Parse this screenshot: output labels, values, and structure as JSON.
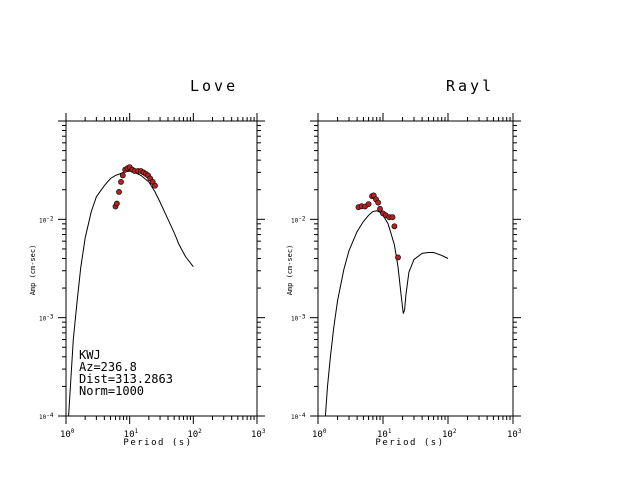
{
  "chart_data": [
    {
      "type": "scatter",
      "title": "Love",
      "xlabel": "Period (s)",
      "ylabel": "Amp (cm-sec)",
      "x_scale": "log",
      "y_scale": "log",
      "xlim": [
        1,
        1000
      ],
      "ylim": [
        0.0001,
        0.1
      ],
      "x_ticks": [
        {
          "base": "10",
          "exp": "0"
        },
        {
          "base": "10",
          "exp": "1"
        },
        {
          "base": "10",
          "exp": "2"
        },
        {
          "base": "10",
          "exp": "3"
        }
      ],
      "y_ticks": [
        {
          "base": "10",
          "exp": "-4"
        },
        {
          "base": "10",
          "exp": "-3"
        },
        {
          "base": "10",
          "exp": "-2"
        }
      ],
      "annotation": [
        "KWJ",
        "Az=236.8",
        "Dist=313.2863",
        "Norm=1000"
      ],
      "series": [
        {
          "kind": "line",
          "color": "#000000",
          "points": [
            [
              1.1,
              0.0001
            ],
            [
              1.2,
              0.00025
            ],
            [
              1.3,
              0.0006
            ],
            [
              1.5,
              0.0015
            ],
            [
              1.7,
              0.0032
            ],
            [
              2.0,
              0.0065
            ],
            [
              2.5,
              0.012
            ],
            [
              3,
              0.017
            ],
            [
              4,
              0.022
            ],
            [
              5,
              0.026
            ],
            [
              6,
              0.028
            ],
            [
              7,
              0.029
            ],
            [
              8,
              0.03
            ],
            [
              10,
              0.031
            ],
            [
              12,
              0.03
            ],
            [
              15,
              0.028
            ],
            [
              20,
              0.024
            ],
            [
              25,
              0.019
            ],
            [
              30,
              0.015
            ],
            [
              40,
              0.01
            ],
            [
              50,
              0.0073
            ],
            [
              60,
              0.0055
            ],
            [
              75,
              0.0042
            ],
            [
              100,
              0.0033
            ]
          ]
        },
        {
          "kind": "points",
          "color": "#b22222",
          "points": [
            [
              6.0,
              0.0135
            ],
            [
              6.3,
              0.0145
            ],
            [
              6.8,
              0.019
            ],
            [
              7.3,
              0.024
            ],
            [
              7.8,
              0.028
            ],
            [
              8.5,
              0.032
            ],
            [
              9.2,
              0.033
            ],
            [
              10,
              0.034
            ],
            [
              11,
              0.032
            ],
            [
              12,
              0.031
            ],
            [
              13.5,
              0.031
            ],
            [
              15,
              0.031
            ],
            [
              16.5,
              0.03
            ],
            [
              18,
              0.029
            ],
            [
              19.5,
              0.028
            ],
            [
              21,
              0.026
            ],
            [
              23,
              0.024
            ],
            [
              25,
              0.022
            ]
          ]
        }
      ]
    },
    {
      "type": "scatter",
      "title": "Rayl",
      "xlabel": "Period (s)",
      "ylabel": "Amp (cm-sec)",
      "x_scale": "log",
      "y_scale": "log",
      "xlim": [
        1,
        1000
      ],
      "ylim": [
        0.0001,
        0.1
      ],
      "x_ticks": [
        {
          "base": "10",
          "exp": "0"
        },
        {
          "base": "10",
          "exp": "1"
        },
        {
          "base": "10",
          "exp": "2"
        },
        {
          "base": "10",
          "exp": "3"
        }
      ],
      "y_ticks": [
        {
          "base": "10",
          "exp": "-4"
        },
        {
          "base": "10",
          "exp": "-3"
        },
        {
          "base": "10",
          "exp": "-2"
        }
      ],
      "series": [
        {
          "kind": "line",
          "color": "#000000",
          "points": [
            [
              1.3,
              0.0001
            ],
            [
              1.4,
              0.0002
            ],
            [
              1.55,
              0.0004
            ],
            [
              1.75,
              0.0008
            ],
            [
              2.0,
              0.0015
            ],
            [
              2.5,
              0.0031
            ],
            [
              3,
              0.0048
            ],
            [
              4,
              0.0075
            ],
            [
              5,
              0.0095
            ],
            [
              6,
              0.011
            ],
            [
              7,
              0.012
            ],
            [
              8,
              0.0122
            ],
            [
              9,
              0.0118
            ],
            [
              10,
              0.011
            ],
            [
              12,
              0.009
            ],
            [
              15,
              0.0055
            ],
            [
              17,
              0.0033
            ],
            [
              19,
              0.0017
            ],
            [
              20.5,
              0.0011
            ],
            [
              21.5,
              0.0012
            ],
            [
              22.5,
              0.0017
            ],
            [
              25,
              0.0029
            ],
            [
              30,
              0.0039
            ],
            [
              40,
              0.0045
            ],
            [
              50,
              0.0046
            ],
            [
              60,
              0.0046
            ],
            [
              80,
              0.0043
            ],
            [
              100,
              0.004
            ]
          ]
        },
        {
          "kind": "points",
          "color": "#b22222",
          "points": [
            [
              4.2,
              0.0133
            ],
            [
              4.7,
              0.0136
            ],
            [
              5.3,
              0.0135
            ],
            [
              6.0,
              0.0143
            ],
            [
              6.8,
              0.0172
            ],
            [
              7.2,
              0.0175
            ],
            [
              7.8,
              0.016
            ],
            [
              8.4,
              0.0148
            ],
            [
              9.0,
              0.0128
            ],
            [
              10,
              0.0115
            ],
            [
              11,
              0.011
            ],
            [
              12.5,
              0.0105
            ],
            [
              14,
              0.0105
            ],
            [
              15,
              0.0085
            ],
            [
              17,
              0.0041
            ]
          ]
        }
      ]
    }
  ]
}
